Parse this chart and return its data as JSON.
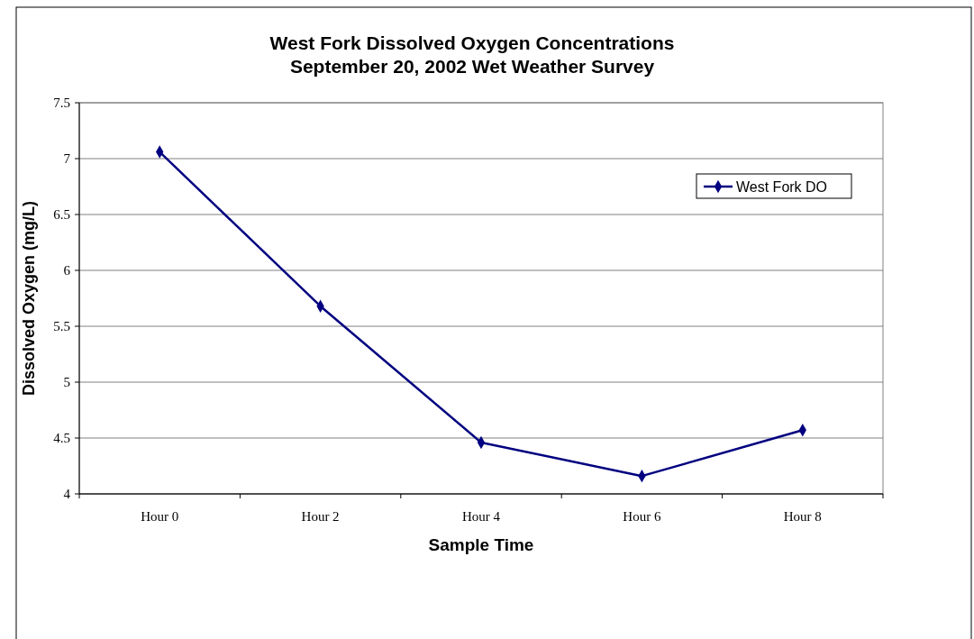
{
  "chart_data": {
    "type": "line",
    "title": "West Fork Dissolved Oxygen Concentrations\nSeptember 20, 2002 Wet Weather Survey",
    "xlabel": "Sample Time",
    "ylabel": "Dissolved Oxygen (mg/L)",
    "categories": [
      "Hour 0",
      "Hour 2",
      "Hour 4",
      "Hour 6",
      "Hour 8"
    ],
    "series": [
      {
        "name": "West Fork DO",
        "color": "#000080",
        "values": [
          7.06,
          5.68,
          4.46,
          4.16,
          4.57
        ]
      }
    ],
    "ylim": [
      4,
      7.5
    ],
    "yticks": [
      4,
      4.5,
      5,
      5.5,
      6,
      6.5,
      7,
      7.5
    ],
    "grid": "y",
    "legend": "top right",
    "marker": "diamond",
    "line_style": "solid"
  }
}
